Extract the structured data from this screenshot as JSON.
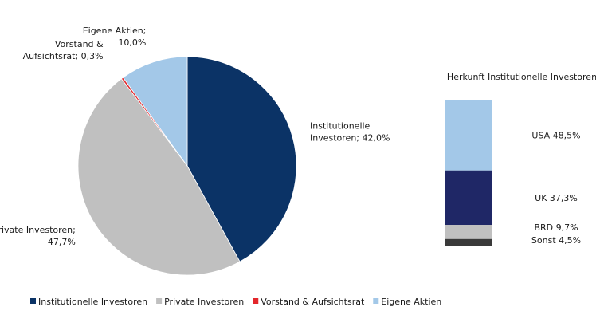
{
  "chart_data": [
    {
      "type": "pie",
      "labels": [
        "Institutionelle Investoren",
        "Private Investoren",
        "Vorstand & Aufsichtsrat",
        "Eigene Aktien"
      ],
      "values": [
        42.0,
        47.7,
        0.3,
        10.0
      ],
      "colors": [
        "#0b3366",
        "#c0c0c0",
        "#e3262b",
        "#a3c8e8"
      ],
      "data_labels": [
        [
          "Institutionelle",
          "Investoren; 42,0%"
        ],
        [
          "Private Investoren;",
          "47,7%"
        ],
        [
          "Vorstand &",
          "Aufsichtsrat; 0,3%"
        ],
        [
          "Eigene Aktien;",
          "10,0%"
        ]
      ],
      "start_angle_deg": 0,
      "direction": "clockwise",
      "legend": {
        "position": "bottom-left",
        "entries": [
          "Institutionelle Investoren",
          "Private Investoren",
          "Vorstand & Aufsichtsrat",
          "Eigene Aktien"
        ]
      }
    },
    {
      "type": "bar",
      "stacked": true,
      "title": "Herkunft Institutionelle Investoren",
      "categories": [
        "USA",
        "UK",
        "BRD",
        "Sonst"
      ],
      "values": [
        48.5,
        37.3,
        9.7,
        4.5
      ],
      "colors": [
        "#a3c8e8",
        "#1f2766",
        "#c0c0c0",
        "#3a3a3a"
      ],
      "data_labels": [
        "USA 48,5%",
        "UK 37,3%",
        "BRD 9,7%",
        "Sonst 4,5%"
      ],
      "ylim": [
        0,
        100
      ]
    }
  ]
}
